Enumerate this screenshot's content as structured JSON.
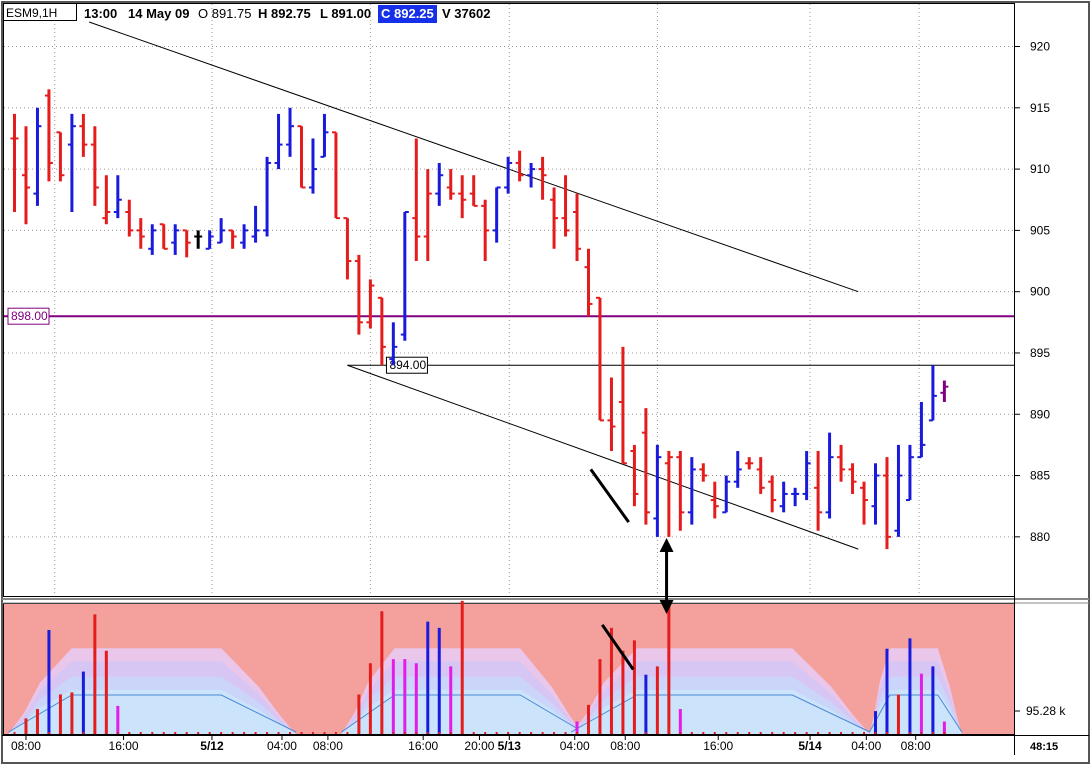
{
  "header": {
    "symbol": "ESM9,1H",
    "time": "13:00",
    "date": "14 May 09",
    "open": "O 891.75",
    "high": "H 892.75",
    "low": "L 891.00",
    "close": "C 892.25",
    "volume": "V 37602"
  },
  "chart_data": [
    {
      "type": "ohlc",
      "y_axis_ticks": [
        "920",
        "915",
        "910",
        "905",
        "900",
        "895",
        "890",
        "885",
        "880"
      ],
      "ylim": [
        875.5,
        922
      ],
      "x_axis_ticks": [
        "08:00",
        "16:00",
        "5/12",
        "04:00",
        "08:00",
        "16:00",
        "20:00",
        "5/13",
        "04:00",
        "08:00",
        "16:00",
        "5/14",
        "04:00",
        "08:00"
      ],
      "time_corner_label": "48:15",
      "colors": {
        "up": "#1a1adc",
        "down": "#e41c1c",
        "neutral": "#000000",
        "purple": "#800080"
      },
      "horizontal_lines": [
        {
          "value": 898.0,
          "label": "898.00",
          "color": "#800080"
        },
        {
          "value": 894.0,
          "label": "894.00",
          "color": "#000000"
        }
      ],
      "trendlines": [
        {
          "from": [
            6.5,
            922
          ],
          "to": [
            73.5,
            900
          ]
        },
        {
          "from": [
            29,
            894
          ],
          "to": [
            73.5,
            879
          ]
        }
      ],
      "annotations": [
        {
          "type": "line",
          "from": [
            50.2,
            885.5
          ],
          "to": [
            53.5,
            881.2
          ]
        },
        {
          "type": "arrow",
          "from": [
            56.8,
            879.2
          ],
          "to": [
            56.8,
            876.2
          ]
        }
      ],
      "bars": [
        {
          "o": 912.5,
          "h": 914.5,
          "l": 906.5,
          "c": 912.5,
          "d": "down"
        },
        {
          "o": 909.5,
          "h": 913.5,
          "l": 905.5,
          "c": 908.5,
          "d": "down"
        },
        {
          "o": 908.0,
          "h": 915.0,
          "l": 907.0,
          "c": 913.5,
          "d": "up"
        },
        {
          "o": 916.0,
          "h": 916.5,
          "l": 909.0,
          "c": 910.5,
          "d": "down"
        },
        {
          "o": 913.0,
          "h": 913.0,
          "l": 909.0,
          "c": 909.5,
          "d": "down"
        },
        {
          "o": 912.0,
          "h": 914.5,
          "l": 906.5,
          "c": 913.5,
          "d": "up"
        },
        {
          "o": 913.5,
          "h": 914.5,
          "l": 911.0,
          "c": 912.0,
          "d": "down"
        },
        {
          "o": 912.0,
          "h": 913.5,
          "l": 907.0,
          "c": 908.5,
          "d": "down"
        },
        {
          "o": 906.0,
          "h": 909.5,
          "l": 905.5,
          "c": 906.5,
          "d": "down"
        },
        {
          "o": 906.5,
          "h": 909.5,
          "l": 906.0,
          "c": 907.5,
          "d": "up"
        },
        {
          "o": 906.5,
          "h": 907.5,
          "l": 904.5,
          "c": 905.0,
          "d": "down"
        },
        {
          "o": 905.0,
          "h": 906.0,
          "l": 903.5,
          "c": 904.5,
          "d": "down"
        },
        {
          "o": 903.5,
          "h": 905.5,
          "l": 903.0,
          "c": 905.0,
          "d": "up"
        },
        {
          "o": 905.5,
          "h": 905.5,
          "l": 903.5,
          "c": 903.5,
          "d": "down"
        },
        {
          "o": 904.0,
          "h": 905.5,
          "l": 903.0,
          "c": 905.0,
          "d": "up"
        },
        {
          "o": 905.0,
          "h": 905.0,
          "l": 902.8,
          "c": 904.0,
          "d": "down"
        },
        {
          "o": 904.5,
          "h": 905.0,
          "l": 903.5,
          "c": 904.5,
          "d": "neutral"
        },
        {
          "o": 903.5,
          "h": 905.0,
          "l": 903.5,
          "c": 904.5,
          "d": "up"
        },
        {
          "o": 904.0,
          "h": 906.0,
          "l": 904.0,
          "c": 905.0,
          "d": "up"
        },
        {
          "o": 905.0,
          "h": 905.0,
          "l": 903.5,
          "c": 904.5,
          "d": "down"
        },
        {
          "o": 904.0,
          "h": 905.5,
          "l": 903.5,
          "c": 905.0,
          "d": "up"
        },
        {
          "o": 904.5,
          "h": 907.0,
          "l": 904.0,
          "c": 905.0,
          "d": "up"
        },
        {
          "o": 905.0,
          "h": 911.0,
          "l": 904.5,
          "c": 910.5,
          "d": "up"
        },
        {
          "o": 910.5,
          "h": 914.5,
          "l": 910.0,
          "c": 912.0,
          "d": "up"
        },
        {
          "o": 912.0,
          "h": 915.0,
          "l": 911.0,
          "c": 913.5,
          "d": "up"
        },
        {
          "o": 913.5,
          "h": 913.5,
          "l": 908.5,
          "c": 908.5,
          "d": "down"
        },
        {
          "o": 908.5,
          "h": 912.5,
          "l": 908.0,
          "c": 910.0,
          "d": "up"
        },
        {
          "o": 911.0,
          "h": 914.5,
          "l": 911.0,
          "c": 913.0,
          "d": "up"
        },
        {
          "o": 913.0,
          "h": 913.0,
          "l": 906.0,
          "c": 906.0,
          "d": "down"
        },
        {
          "o": 906.0,
          "h": 906.0,
          "l": 901.0,
          "c": 902.5,
          "d": "down"
        },
        {
          "o": 902.5,
          "h": 903.0,
          "l": 896.5,
          "c": 897.5,
          "d": "down"
        },
        {
          "o": 897.5,
          "h": 901.0,
          "l": 897.0,
          "c": 900.5,
          "d": "down"
        },
        {
          "o": 899.5,
          "h": 899.5,
          "l": 894.0,
          "c": 895.5,
          "d": "down"
        },
        {
          "o": 894.5,
          "h": 897.5,
          "l": 894.0,
          "c": 895.5,
          "d": "up"
        },
        {
          "o": 896.5,
          "h": 906.5,
          "l": 896.0,
          "c": 906.5,
          "d": "up"
        },
        {
          "o": 906.0,
          "h": 912.5,
          "l": 902.5,
          "c": 904.5,
          "d": "down"
        },
        {
          "o": 904.5,
          "h": 910.0,
          "l": 902.5,
          "c": 908.0,
          "d": "down"
        },
        {
          "o": 908.0,
          "h": 910.5,
          "l": 907.0,
          "c": 909.5,
          "d": "up"
        },
        {
          "o": 908.5,
          "h": 910.0,
          "l": 907.5,
          "c": 908.0,
          "d": "down"
        },
        {
          "o": 908.0,
          "h": 909.5,
          "l": 906.0,
          "c": 907.5,
          "d": "down"
        },
        {
          "o": 908.0,
          "h": 909.5,
          "l": 907.0,
          "c": 907.0,
          "d": "down"
        },
        {
          "o": 907.0,
          "h": 907.5,
          "l": 902.5,
          "c": 905.0,
          "d": "down"
        },
        {
          "o": 905.0,
          "h": 908.5,
          "l": 904.0,
          "c": 908.5,
          "d": "up"
        },
        {
          "o": 908.5,
          "h": 911.0,
          "l": 908.0,
          "c": 910.5,
          "d": "up"
        },
        {
          "o": 910.5,
          "h": 911.5,
          "l": 909.0,
          "c": 909.5,
          "d": "down"
        },
        {
          "o": 909.5,
          "h": 910.5,
          "l": 908.5,
          "c": 910.0,
          "d": "up"
        },
        {
          "o": 910.0,
          "h": 911.0,
          "l": 907.5,
          "c": 909.5,
          "d": "down"
        },
        {
          "o": 907.5,
          "h": 908.5,
          "l": 903.5,
          "c": 906.0,
          "d": "down"
        },
        {
          "o": 906.0,
          "h": 909.5,
          "l": 904.5,
          "c": 905.0,
          "d": "down"
        },
        {
          "o": 906.5,
          "h": 908.0,
          "l": 902.5,
          "c": 903.5,
          "d": "down"
        },
        {
          "o": 902.0,
          "h": 903.5,
          "l": 898.0,
          "c": 899.0,
          "d": "down"
        },
        {
          "o": 899.5,
          "h": 899.5,
          "l": 889.5,
          "c": 889.5,
          "d": "down"
        },
        {
          "o": 889.5,
          "h": 893.0,
          "l": 887.0,
          "c": 889.0,
          "d": "down"
        },
        {
          "o": 891.0,
          "h": 895.5,
          "l": 886.0,
          "c": 886.0,
          "d": "down"
        },
        {
          "o": 887.0,
          "h": 887.5,
          "l": 882.5,
          "c": 883.5,
          "d": "down"
        },
        {
          "o": 888.5,
          "h": 890.5,
          "l": 881.0,
          "c": 882.0,
          "d": "down"
        },
        {
          "o": 881.5,
          "h": 887.5,
          "l": 880.0,
          "c": 886.5,
          "d": "up"
        },
        {
          "o": 886.0,
          "h": 887.0,
          "l": 880.0,
          "c": 886.5,
          "d": "down"
        },
        {
          "o": 886.5,
          "h": 887.0,
          "l": 880.5,
          "c": 882.0,
          "d": "down"
        },
        {
          "o": 882.0,
          "h": 886.5,
          "l": 881.0,
          "c": 885.5,
          "d": "up"
        },
        {
          "o": 885.5,
          "h": 886.0,
          "l": 884.5,
          "c": 885.0,
          "d": "down"
        },
        {
          "o": 883.0,
          "h": 884.5,
          "l": 881.5,
          "c": 882.5,
          "d": "down"
        },
        {
          "o": 882.0,
          "h": 885.0,
          "l": 882.0,
          "c": 884.5,
          "d": "up"
        },
        {
          "o": 884.5,
          "h": 887.0,
          "l": 884.0,
          "c": 885.5,
          "d": "up"
        },
        {
          "o": 886.0,
          "h": 886.5,
          "l": 885.5,
          "c": 886.0,
          "d": "down"
        },
        {
          "o": 885.5,
          "h": 886.5,
          "l": 883.5,
          "c": 884.0,
          "d": "down"
        },
        {
          "o": 884.5,
          "h": 885.0,
          "l": 882.0,
          "c": 883.0,
          "d": "down"
        },
        {
          "o": 882.5,
          "h": 884.5,
          "l": 882.0,
          "c": 883.5,
          "d": "up"
        },
        {
          "o": 883.5,
          "h": 884.0,
          "l": 882.5,
          "c": 883.5,
          "d": "up"
        },
        {
          "o": 883.5,
          "h": 887.0,
          "l": 883.0,
          "c": 886.0,
          "d": "up"
        },
        {
          "o": 884.0,
          "h": 887.0,
          "l": 880.5,
          "c": 882.0,
          "d": "down"
        },
        {
          "o": 882.0,
          "h": 888.5,
          "l": 881.5,
          "c": 886.5,
          "d": "up"
        },
        {
          "o": 886.5,
          "h": 887.5,
          "l": 884.5,
          "c": 885.5,
          "d": "down"
        },
        {
          "o": 885.5,
          "h": 886.0,
          "l": 883.5,
          "c": 884.5,
          "d": "down"
        },
        {
          "o": 884.0,
          "h": 884.5,
          "l": 881.0,
          "c": 883.0,
          "d": "down"
        },
        {
          "o": 882.5,
          "h": 886.0,
          "l": 881.0,
          "c": 885.0,
          "d": "up"
        },
        {
          "o": 885.0,
          "h": 886.5,
          "l": 879.0,
          "c": 880.0,
          "d": "down"
        },
        {
          "o": 880.5,
          "h": 887.5,
          "l": 880.0,
          "c": 885.0,
          "d": "up"
        },
        {
          "o": 883.0,
          "h": 887.5,
          "l": 883.0,
          "c": 886.5,
          "d": "up"
        },
        {
          "o": 886.5,
          "h": 891.0,
          "l": 886.5,
          "c": 887.5,
          "d": "up"
        },
        {
          "o": 889.5,
          "h": 894.0,
          "l": 889.5,
          "c": 891.5,
          "d": "up"
        },
        {
          "o": 891.75,
          "h": 892.75,
          "l": 891.0,
          "c": 892.25,
          "d": "purple"
        }
      ]
    },
    {
      "type": "bar",
      "y_axis_ticks": [
        "95.28 k"
      ],
      "ylim": [
        0,
        125
      ],
      "colors": {
        "bg": "#f4a19e",
        "up": "#1a1adc",
        "down": "#e41c1c",
        "neutral": "#e31ce6",
        "line": "#4a8ad4"
      },
      "annotations": [
        {
          "type": "line",
          "from": [
            51.2,
            105
          ],
          "to": [
            53.9,
            62
          ]
        }
      ],
      "volume": [
        {
          "i": 1,
          "v": 15,
          "d": "down"
        },
        {
          "i": 2,
          "v": 24,
          "d": "down"
        },
        {
          "i": 3,
          "v": 100,
          "d": "up"
        },
        {
          "i": 4,
          "v": 38,
          "d": "down"
        },
        {
          "i": 5,
          "v": 40,
          "d": "down"
        },
        {
          "i": 6,
          "v": 60,
          "d": "up"
        },
        {
          "i": 7,
          "v": 115,
          "d": "down"
        },
        {
          "i": 8,
          "v": 80,
          "d": "down"
        },
        {
          "i": 9,
          "v": 27,
          "d": "neutral"
        },
        {
          "i": 30,
          "v": 38,
          "d": "down"
        },
        {
          "i": 31,
          "v": 68,
          "d": "down"
        },
        {
          "i": 32,
          "v": 118,
          "d": "down"
        },
        {
          "i": 33,
          "v": 72,
          "d": "neutral"
        },
        {
          "i": 34,
          "v": 72,
          "d": "neutral"
        },
        {
          "i": 35,
          "v": 68,
          "d": "neutral"
        },
        {
          "i": 36,
          "v": 108,
          "d": "up"
        },
        {
          "i": 37,
          "v": 102,
          "d": "up"
        },
        {
          "i": 38,
          "v": 65,
          "d": "neutral"
        },
        {
          "i": 39,
          "v": 128,
          "d": "down"
        },
        {
          "i": 49,
          "v": 12,
          "d": "neutral"
        },
        {
          "i": 50,
          "v": 28,
          "d": "down"
        },
        {
          "i": 51,
          "v": 72,
          "d": "down"
        },
        {
          "i": 52,
          "v": 102,
          "d": "down"
        },
        {
          "i": 53,
          "v": 80,
          "d": "down"
        },
        {
          "i": 54,
          "v": 90,
          "d": "down"
        },
        {
          "i": 55,
          "v": 57,
          "d": "up"
        },
        {
          "i": 56,
          "v": 65,
          "d": "down"
        },
        {
          "i": 57,
          "v": 128,
          "d": "down"
        },
        {
          "i": 58,
          "v": 24,
          "d": "neutral"
        },
        {
          "i": 75,
          "v": 22,
          "d": "up"
        },
        {
          "i": 76,
          "v": 82,
          "d": "up"
        },
        {
          "i": 77,
          "v": 38,
          "d": "down"
        },
        {
          "i": 78,
          "v": 92,
          "d": "up"
        },
        {
          "i": 79,
          "v": 58,
          "d": "neutral"
        },
        {
          "i": 80,
          "v": 65,
          "d": "up"
        },
        {
          "i": 81,
          "v": 12,
          "d": "neutral"
        }
      ]
    }
  ]
}
